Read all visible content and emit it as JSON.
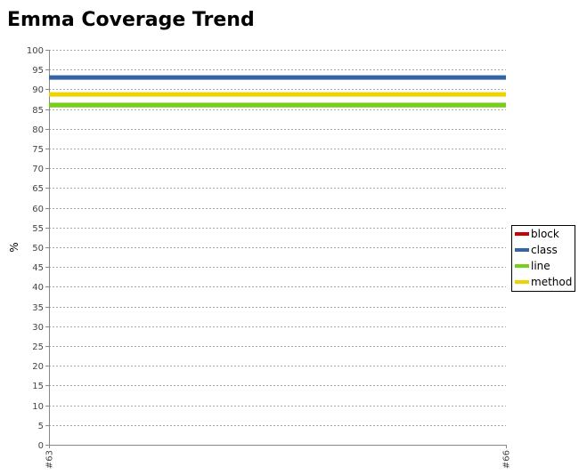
{
  "page": {
    "title": "Emma Coverage Trend"
  },
  "chart_data": {
    "type": "line",
    "title": "",
    "xlabel": "",
    "ylabel": "%",
    "categories": [
      "#63",
      "#66"
    ],
    "ylim": [
      0,
      100
    ],
    "yticks": [
      0,
      5,
      10,
      15,
      20,
      25,
      30,
      35,
      40,
      45,
      50,
      55,
      60,
      65,
      70,
      75,
      80,
      85,
      90,
      95,
      100
    ],
    "grid": true,
    "legend_position": "right",
    "series": [
      {
        "name": "block",
        "color": "#cc0000",
        "values": [
          86,
          86
        ]
      },
      {
        "name": "class",
        "color": "#3465a4",
        "values": [
          93,
          93
        ]
      },
      {
        "name": "line",
        "color": "#73d216",
        "values": [
          86,
          86
        ]
      },
      {
        "name": "method",
        "color": "#edd400",
        "values": [
          88.7,
          88.7
        ]
      }
    ]
  }
}
